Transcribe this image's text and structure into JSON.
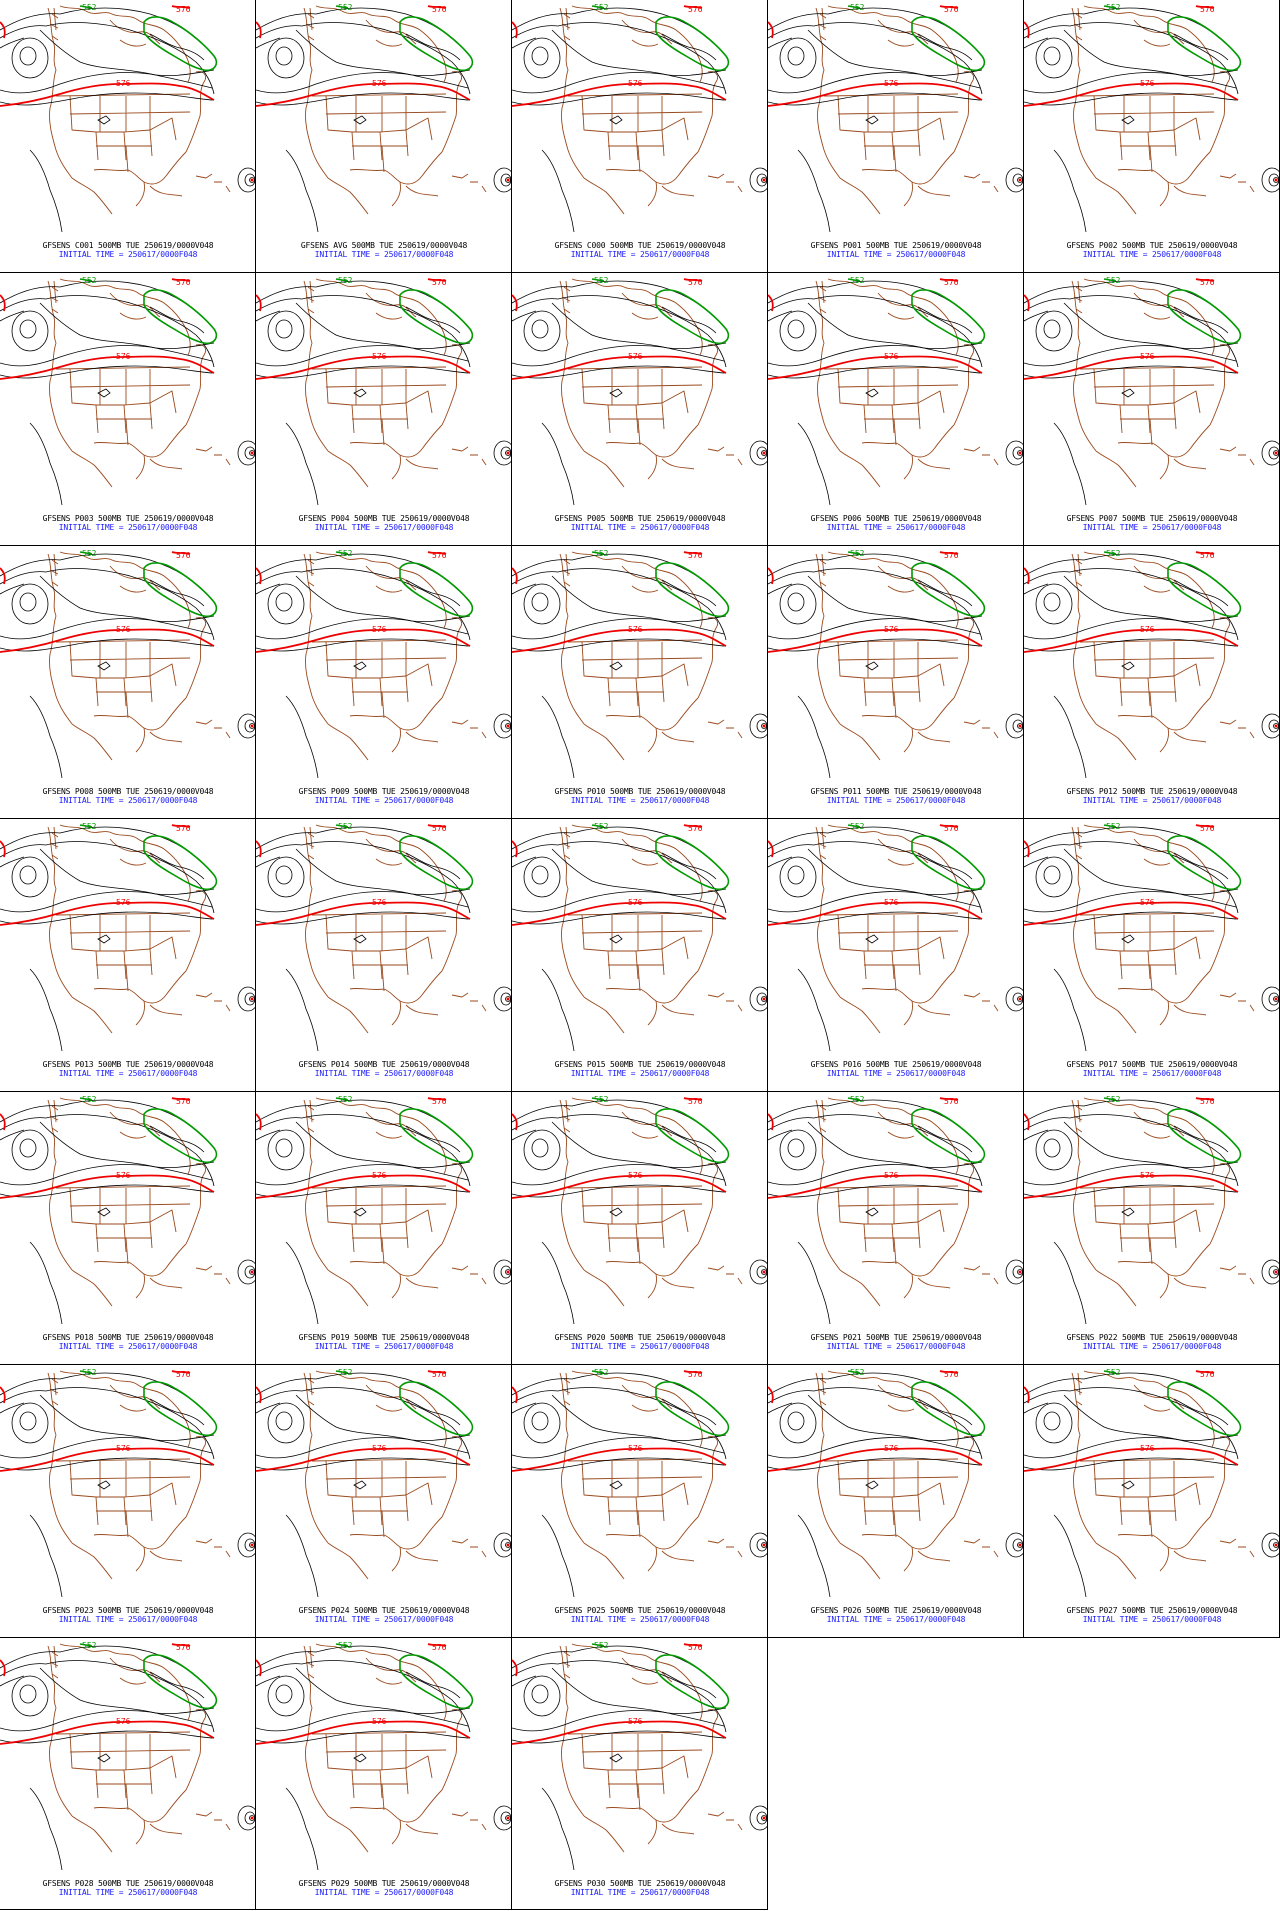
{
  "colors": {
    "height_contour": "#000000",
    "line_576": "#ee0000",
    "line_552": "#009900",
    "map_outline": "#9a4a1e",
    "label_blue": "#1a1aff"
  },
  "contour_labels": {
    "north": "552",
    "red_line": "576",
    "far_north": "576"
  },
  "initial_time": "INITIAL TIME = 250617/0000F048",
  "panels": [
    {
      "id": "C001",
      "caption": "GFSENS C001 500MB TUE 250619/0000V048"
    },
    {
      "id": "AVG",
      "caption": "GFSENS AVG 500MB TUE 250619/0000V048"
    },
    {
      "id": "C000",
      "caption": "GFSENS C000 500MB TUE 250619/0000V048"
    },
    {
      "id": "P001",
      "caption": "GFSENS P001 500MB TUE 250619/0000V048"
    },
    {
      "id": "P002",
      "caption": "GFSENS P002 500MB TUE 250619/0000V048"
    },
    {
      "id": "P003",
      "caption": "GFSENS P003 500MB TUE 250619/0000V048"
    },
    {
      "id": "P004",
      "caption": "GFSENS P004 500MB TUE 250619/0000V048"
    },
    {
      "id": "P005",
      "caption": "GFSENS P005 500MB TUE 250619/0000V048"
    },
    {
      "id": "P006",
      "caption": "GFSENS P006 500MB TUE 250619/0000V048"
    },
    {
      "id": "P007",
      "caption": "GFSENS P007 500MB TUE 250619/0000V048"
    },
    {
      "id": "P008",
      "caption": "GFSENS P008 500MB TUE 250619/0000V048"
    },
    {
      "id": "P009",
      "caption": "GFSENS P009 500MB TUE 250619/0000V048"
    },
    {
      "id": "P010",
      "caption": "GFSENS P010 500MB TUE 250619/0000V048"
    },
    {
      "id": "P011",
      "caption": "GFSENS P011 500MB TUE 250619/0000V048"
    },
    {
      "id": "P012",
      "caption": "GFSENS P012 500MB TUE 250619/0000V048"
    },
    {
      "id": "P013",
      "caption": "GFSENS P013 500MB TUE 250619/0000V048"
    },
    {
      "id": "P014",
      "caption": "GFSENS P014 500MB TUE 250619/0000V048"
    },
    {
      "id": "P015",
      "caption": "GFSENS P015 500MB TUE 250619/0000V048"
    },
    {
      "id": "P016",
      "caption": "GFSENS P016 500MB TUE 250619/0000V048"
    },
    {
      "id": "P017",
      "caption": "GFSENS P017 500MB TUE 250619/0000V048"
    },
    {
      "id": "P018",
      "caption": "GFSENS P018 500MB TUE 250619/0000V048"
    },
    {
      "id": "P019",
      "caption": "GFSENS P019 500MB TUE 250619/0000V048"
    },
    {
      "id": "P020",
      "caption": "GFSENS P020 500MB TUE 250619/0000V048"
    },
    {
      "id": "P021",
      "caption": "GFSENS P021 500MB TUE 250619/0000V048"
    },
    {
      "id": "P022",
      "caption": "GFSENS P022 500MB TUE 250619/0000V048"
    },
    {
      "id": "P023",
      "caption": "GFSENS P023 500MB TUE 250619/0000V048"
    },
    {
      "id": "P024",
      "caption": "GFSENS P024 500MB TUE 250619/0000V048"
    },
    {
      "id": "P025",
      "caption": "GFSENS P025 500MB TUE 250619/0000V048"
    },
    {
      "id": "P026",
      "caption": "GFSENS P026 500MB TUE 250619/0000V048"
    },
    {
      "id": "P027",
      "caption": "GFSENS P027 500MB TUE 250619/0000V048"
    },
    {
      "id": "P028",
      "caption": "GFSENS P028 500MB TUE 250619/0000V048"
    },
    {
      "id": "P029",
      "caption": "GFSENS P029 500MB TUE 250619/0000V048"
    },
    {
      "id": "P030",
      "caption": "GFSENS P030 500MB TUE 250619/0000V048"
    }
  ]
}
